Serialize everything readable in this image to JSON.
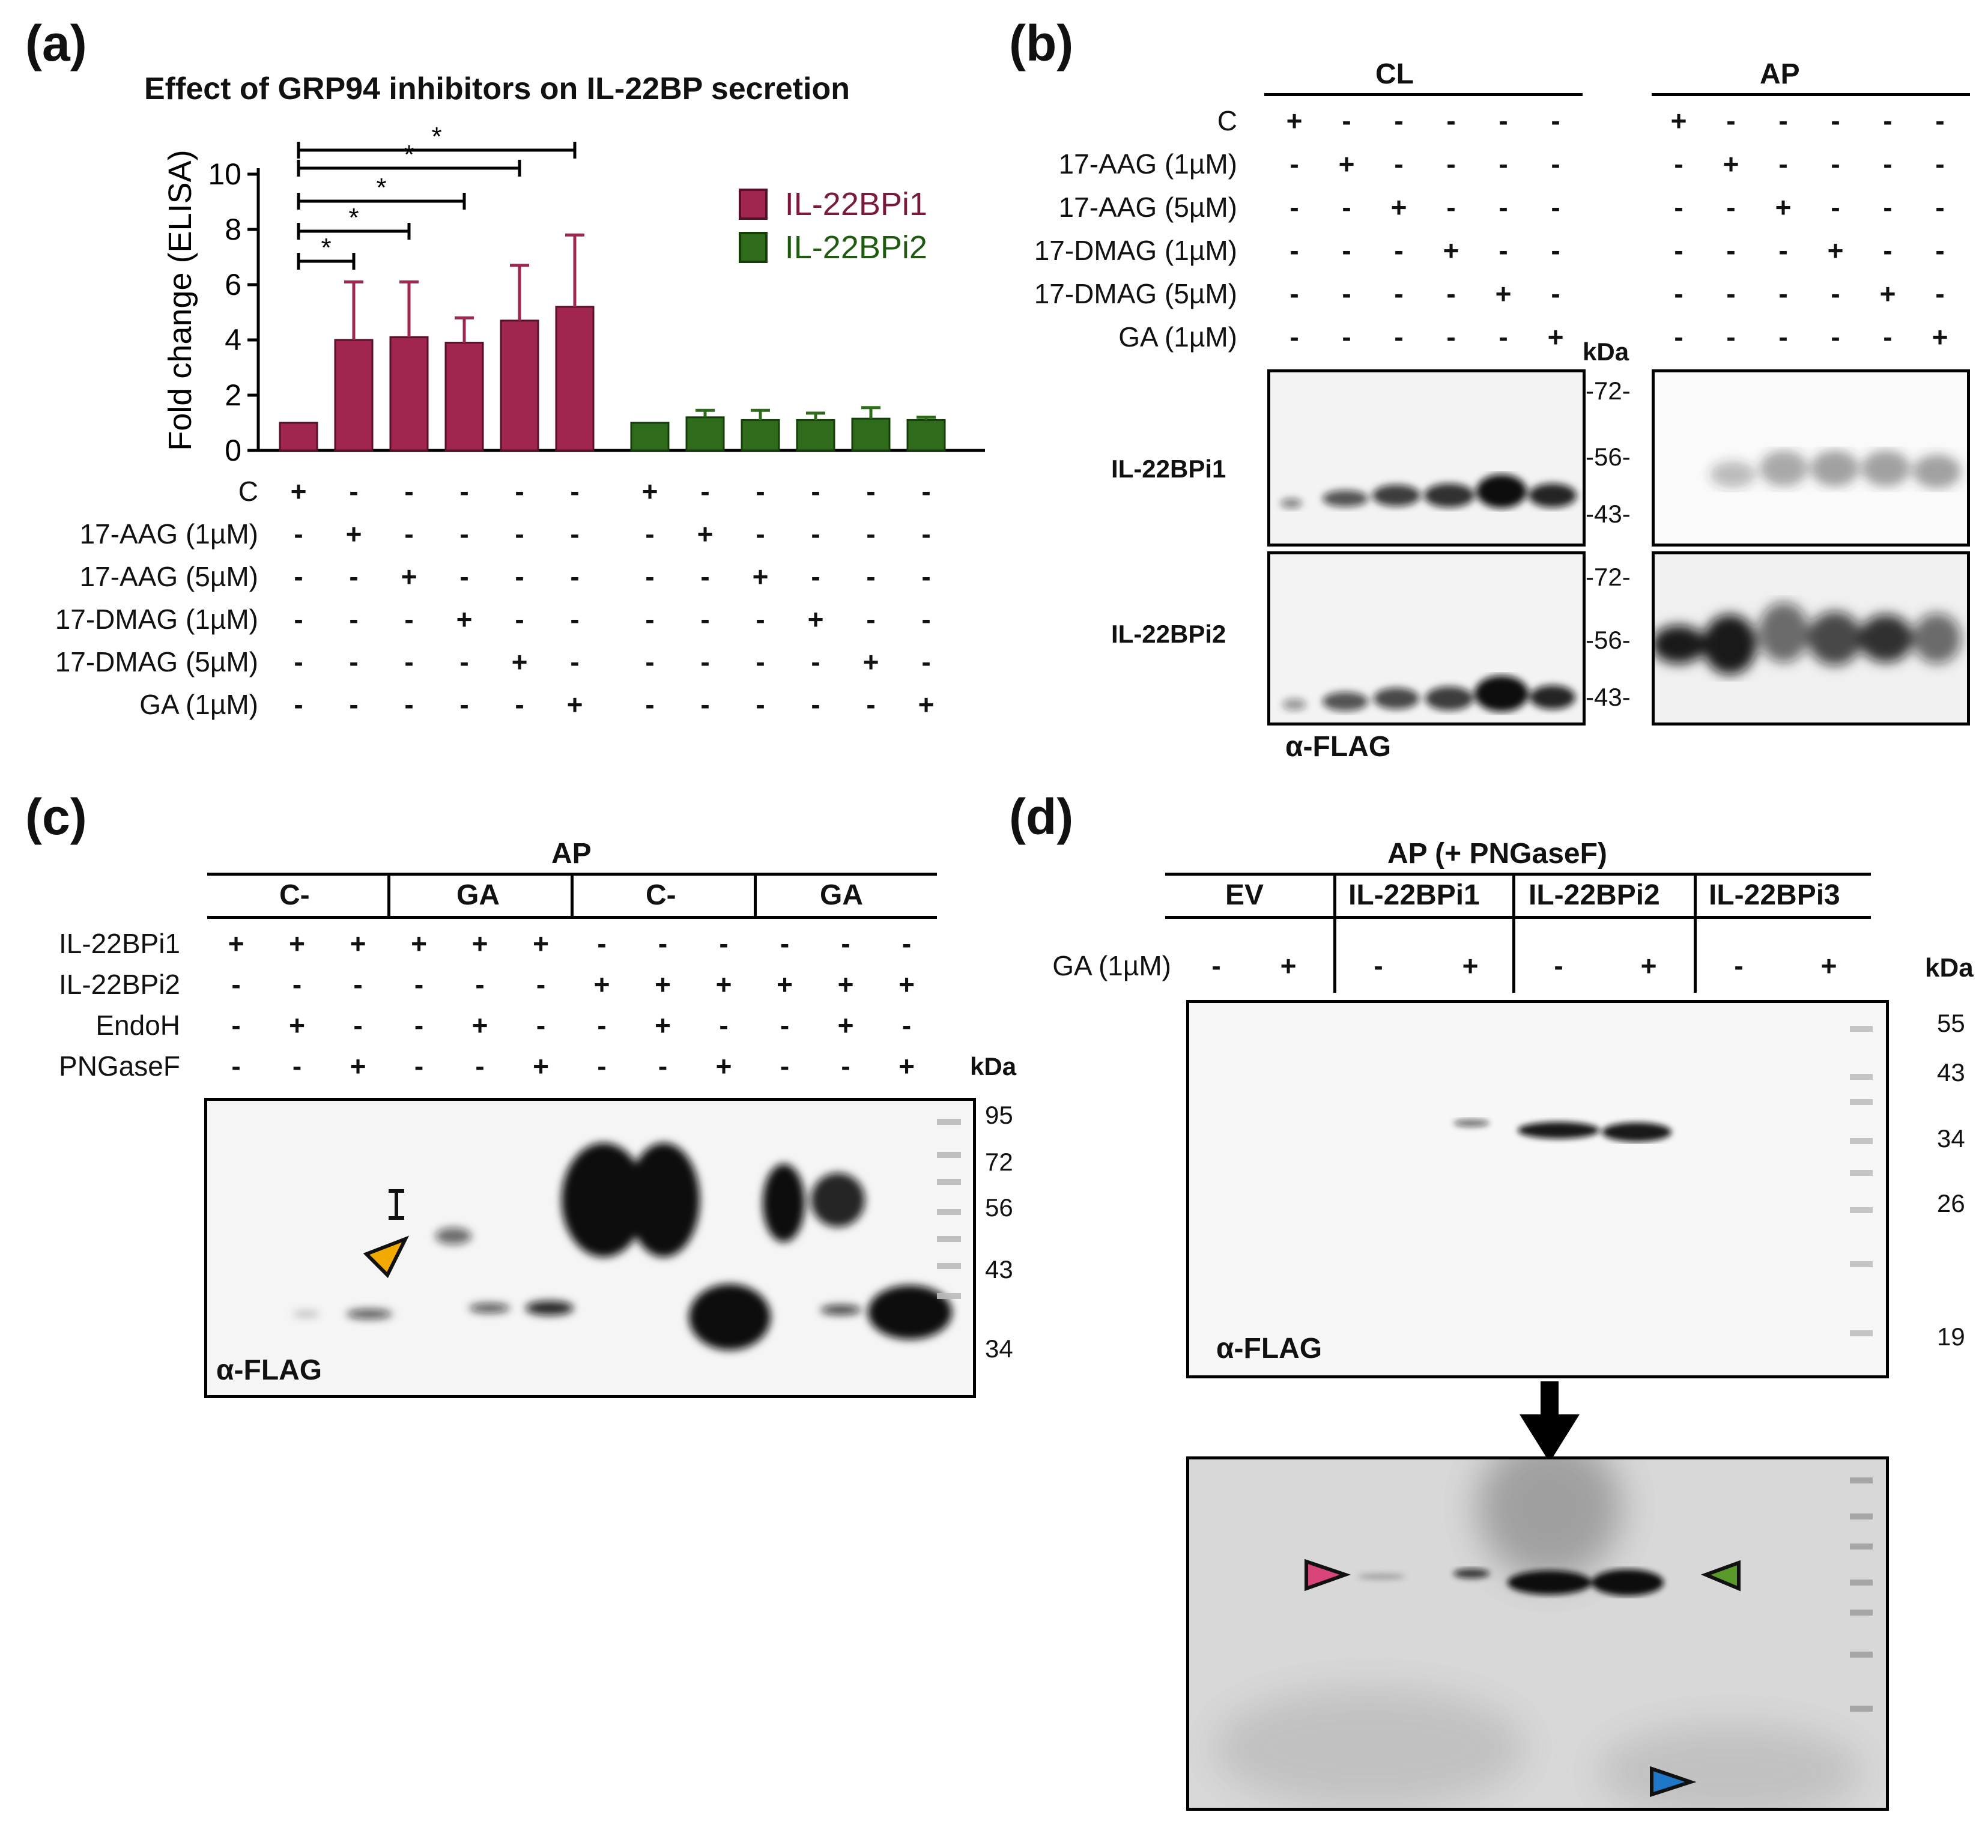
{
  "panels": {
    "a": {
      "label": "(a)",
      "title": "Effect of GRP94 inhibitors on IL-22BP  secretion",
      "ylabel": "Fold change (ELISA)",
      "legend": [
        "IL-22BPi1",
        "IL-22BPi2"
      ],
      "row_labels": [
        "C",
        "17-AAG (1µM)",
        "17-AAG (5µM)",
        "17-DMAG (1µM)",
        "17-DMAG (5µM)",
        "GA (1µM)"
      ],
      "significance": "*"
    },
    "b": {
      "label": "(b)",
      "groups": [
        "CL",
        "AP"
      ],
      "row_labels": [
        "C",
        "17-AAG (1µM)",
        "17-AAG (5µM)",
        "17-DMAG (1µM)",
        "17-DMAG (5µM)",
        "GA (1µM)"
      ],
      "kda": "kDa",
      "markers": [
        "-72-",
        "-56-",
        "-43-"
      ],
      "blot_labels": [
        "IL-22BPi1",
        "IL-22BPi2"
      ],
      "antibody": "α-FLAG"
    },
    "c": {
      "label": "(c)",
      "header": "AP",
      "subgroups": [
        "C-",
        "GA",
        "C-",
        "GA"
      ],
      "row_labels": [
        "IL-22BPi1",
        "IL-22BPi2",
        "EndoH",
        "PNGaseF"
      ],
      "rows": [
        [
          "+",
          "+",
          "+",
          "+",
          "+",
          "+",
          "-",
          "-",
          "-",
          "-",
          "-",
          "-"
        ],
        [
          "-",
          "-",
          "-",
          "-",
          "-",
          "-",
          "+",
          "+",
          "+",
          "+",
          "+",
          "+"
        ],
        [
          "-",
          "+",
          "-",
          "-",
          "+",
          "-",
          "-",
          "+",
          "-",
          "-",
          "+",
          "-"
        ],
        [
          "-",
          "-",
          "+",
          "-",
          "-",
          "+",
          "-",
          "-",
          "+",
          "-",
          "-",
          "+"
        ]
      ],
      "kda": "kDa",
      "markers": [
        "95",
        "72",
        "56",
        "43",
        "34"
      ],
      "antibody": "α-FLAG",
      "bracket_symbol": "I"
    },
    "d": {
      "label": "(d)",
      "header": "AP (+ PNGaseF)",
      "groups": [
        "EV",
        "IL-22BPi1",
        "IL-22BPi2",
        "IL-22BPi3"
      ],
      "row_label": "GA (1µM)",
      "row": [
        "-",
        "+",
        "-",
        "+",
        "-",
        "+",
        "-",
        "+"
      ],
      "kda": "kDa",
      "markers": [
        "55",
        "43",
        "34",
        "26",
        "19"
      ],
      "antibody": "α-FLAG"
    }
  },
  "colors": {
    "series1": "#a0254f",
    "series1_text": "#7a1a3a",
    "series2": "#2e6b1a",
    "series2_text": "#1f5a10",
    "arrow_orange": "#f2a900",
    "arrow_pink": "#d9457a",
    "arrow_green": "#5a9a2a",
    "arrow_blue": "#1f77c8"
  },
  "chart_data": {
    "type": "bar",
    "categories": [
      "C",
      "17-AAG (1µM)",
      "17-AAG (5µM)",
      "17-DMAG (1µM)",
      "17-DMAG (5µM)",
      "GA (1µM)"
    ],
    "series": [
      {
        "name": "IL-22BPi1",
        "values": [
          1.0,
          4.0,
          4.1,
          3.9,
          4.7,
          5.2
        ],
        "errors": [
          0.0,
          2.1,
          2.0,
          0.9,
          2.0,
          2.6
        ]
      },
      {
        "name": "IL-22BPi2",
        "values": [
          1.0,
          1.2,
          1.1,
          1.1,
          1.15,
          1.1
        ],
        "errors": [
          0.0,
          0.25,
          0.35,
          0.25,
          0.4,
          0.1
        ]
      }
    ],
    "ylabel": "Fold change (ELISA)",
    "ylim": [
      0,
      10
    ],
    "yticks": [
      0,
      2,
      4,
      6,
      8,
      10
    ],
    "significance_pairs": [
      [
        0,
        1
      ],
      [
        0,
        2
      ],
      [
        0,
        3
      ],
      [
        0,
        4
      ],
      [
        0,
        5
      ]
    ],
    "legend_position": "top-right",
    "grid": false
  }
}
